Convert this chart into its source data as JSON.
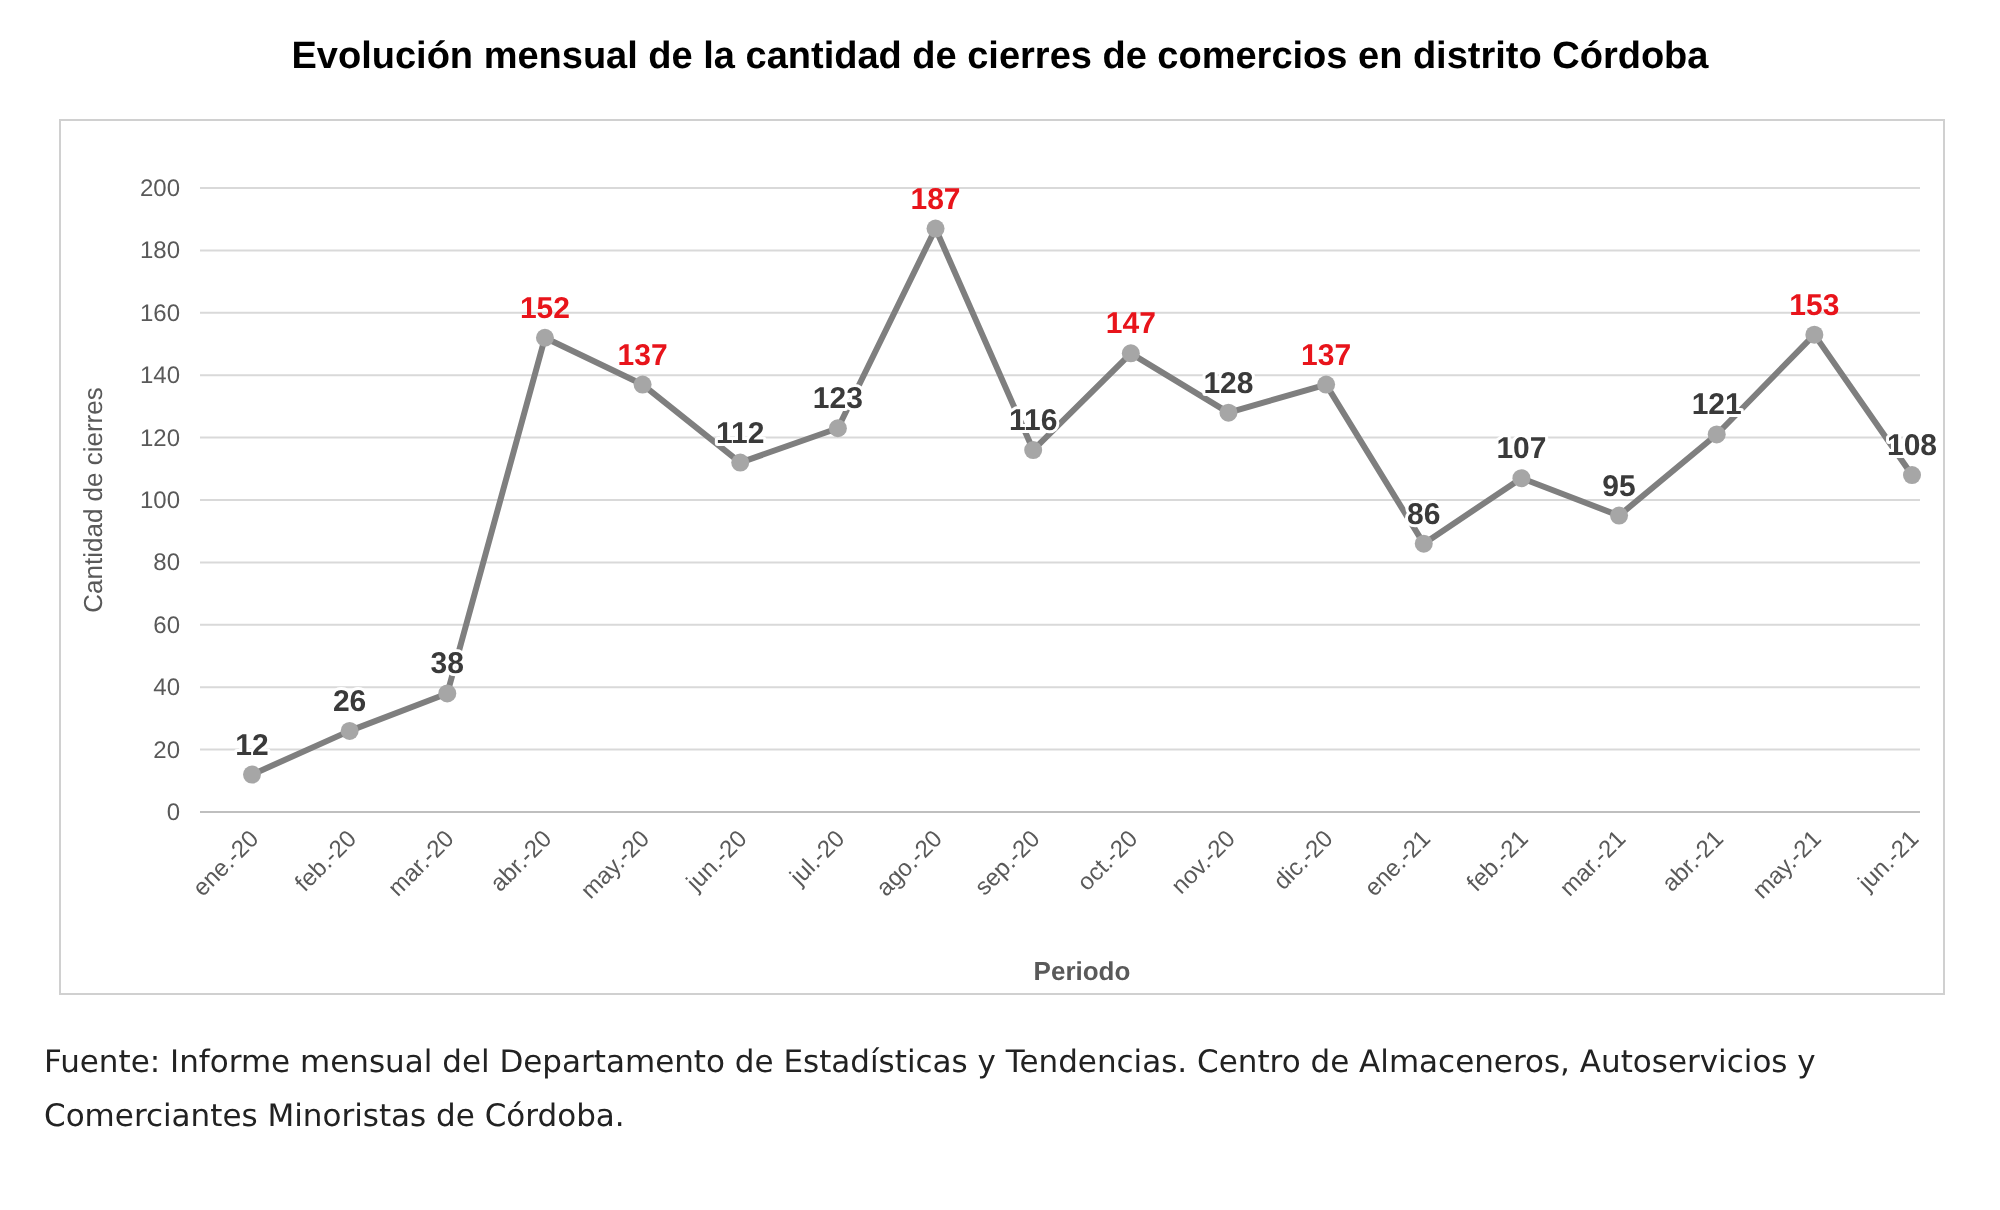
{
  "chart_data": {
    "type": "line",
    "title": "Evolución mensual de la cantidad de cierres de comercios en distrito Córdoba",
    "xlabel": "Periodo",
    "ylabel": "Cantidad de cierres",
    "categories": [
      "ene.-20",
      "feb.-20",
      "mar.-20",
      "abr.-20",
      "may.-20",
      "jun.-20",
      "jul.-20",
      "ago.-20",
      "sep.-20",
      "oct.-20",
      "nov.-20",
      "dic.-20",
      "ene.-21",
      "feb.-21",
      "mar.-21",
      "abr.-21",
      "may.-21",
      "jun.-21"
    ],
    "series": [
      {
        "color": "#7f7f7f",
        "values": [
          12,
          26,
          38,
          152,
          137,
          112,
          123,
          187,
          116,
          147,
          128,
          137,
          86,
          107,
          95,
          121,
          153,
          108
        ],
        "value_labels": [
          "12",
          "26",
          "38",
          null,
          null,
          "112",
          "123",
          null,
          "116",
          null,
          "128",
          null,
          "86",
          "107",
          "95",
          "121",
          null,
          "108"
        ]
      }
    ],
    "annotations": [
      {
        "text": "152",
        "x": "abr.-20",
        "y": 152
      },
      {
        "text": "137",
        "x": "may.-20",
        "y": 137
      },
      {
        "text": "187",
        "x": "ago.-20",
        "y": 187
      },
      {
        "text": "147",
        "x": "oct.-20",
        "y": 147
      },
      {
        "text": "137",
        "x": "dic.-20",
        "y": 137
      },
      {
        "text": "153",
        "x": "may.-21",
        "y": 153
      },
      "Fuente: Informe mensual del Departamento de Estadísticas y Tendencias. Centro de Almaceneros, Autoservicios y Comerciantes Minoristas de Córdoba."
    ],
    "ylim": [
      0,
      200
    ],
    "yticks": [
      0,
      20,
      40,
      60,
      80,
      100,
      120,
      140,
      160,
      180,
      200
    ],
    "grid": "y",
    "marker": "circle",
    "line_style": "solid"
  }
}
